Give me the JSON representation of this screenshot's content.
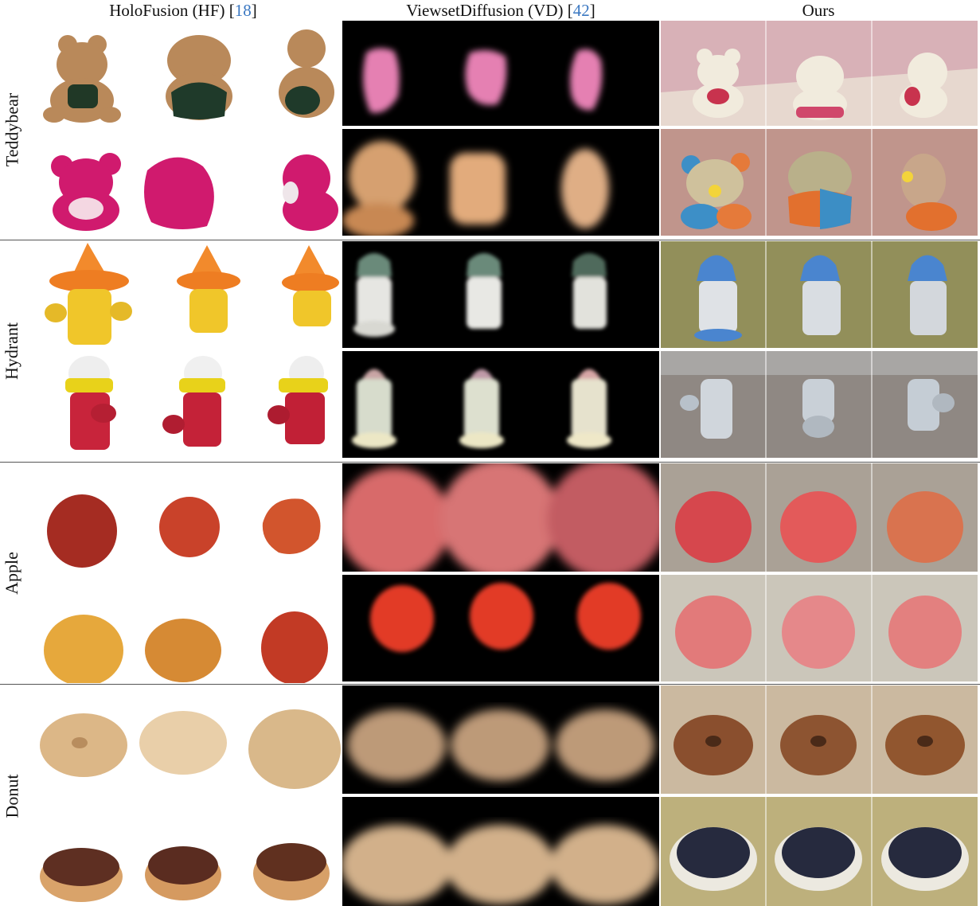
{
  "columns": [
    {
      "name": "HoloFusion (HF)",
      "ref": "18"
    },
    {
      "name": "ViewsetDiffusion (VD)",
      "ref": "42"
    },
    {
      "name": "Ours",
      "ref": ""
    }
  ],
  "rows": [
    "Teddybear",
    "Hydrant",
    "Apple",
    "Donut"
  ],
  "colors": {
    "reference_link": "#3b78c2",
    "separator": "#555555"
  }
}
